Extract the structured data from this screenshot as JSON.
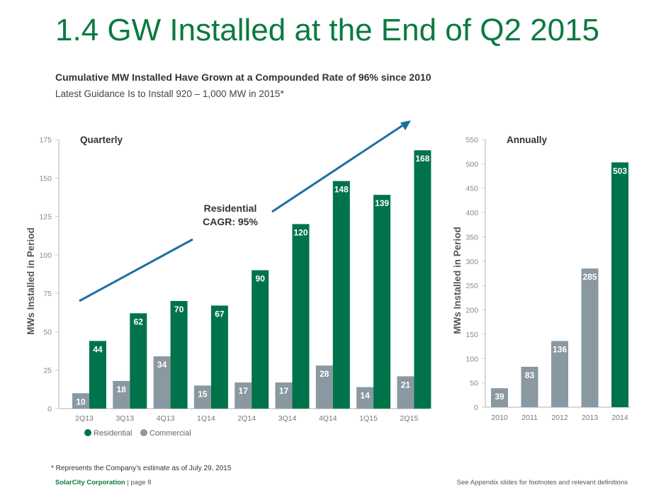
{
  "title": "1.4 GW Installed at the End of Q2 2015",
  "subtitle": "Cumulative MW Installed Have Grown at a Compounded Rate of 96% since 2010",
  "subtitle2": "Latest Guidance Is to Install 920 – 1,000 MW in 2015*",
  "footnote": "* Represents the Company’s estimate as of July 29, 2015",
  "footer_company": "SolarCity Corporation",
  "footer_page": " | page 8",
  "footer_right": "See Appendix slides for footnotes and relevant definitions",
  "colors": {
    "residential": "#00734a",
    "commercial": "#8a98a2",
    "title": "#0b7a40",
    "arrow": "#1b6fa3"
  },
  "chart_data": [
    {
      "type": "bar",
      "title": "Quarterly",
      "ylabel": "MWs Installed in Period",
      "ylim": [
        0,
        175
      ],
      "yticks": [
        0,
        25,
        50,
        75,
        100,
        125,
        150,
        175
      ],
      "categories": [
        "2Q13",
        "3Q13",
        "4Q13",
        "1Q14",
        "2Q14",
        "3Q14",
        "4Q14",
        "1Q15",
        "2Q15"
      ],
      "series": [
        {
          "name": "Commercial",
          "values": [
            10,
            18,
            34,
            15,
            17,
            17,
            28,
            14,
            21
          ]
        },
        {
          "name": "Residential",
          "values": [
            44,
            62,
            70,
            67,
            90,
            120,
            148,
            139,
            168
          ]
        }
      ],
      "legend": "bottom-left",
      "annotation": {
        "line1": "Residential",
        "line2": "CAGR: 95%"
      }
    },
    {
      "type": "bar",
      "title": "Annually",
      "ylabel": "MWs Installed in Period",
      "ylim": [
        0,
        550
      ],
      "yticks": [
        0,
        50,
        100,
        150,
        200,
        250,
        300,
        350,
        400,
        450,
        500,
        550
      ],
      "categories": [
        "2010",
        "2011",
        "2012",
        "2013",
        "2014"
      ],
      "values": [
        39,
        83,
        136,
        285,
        503
      ]
    }
  ]
}
